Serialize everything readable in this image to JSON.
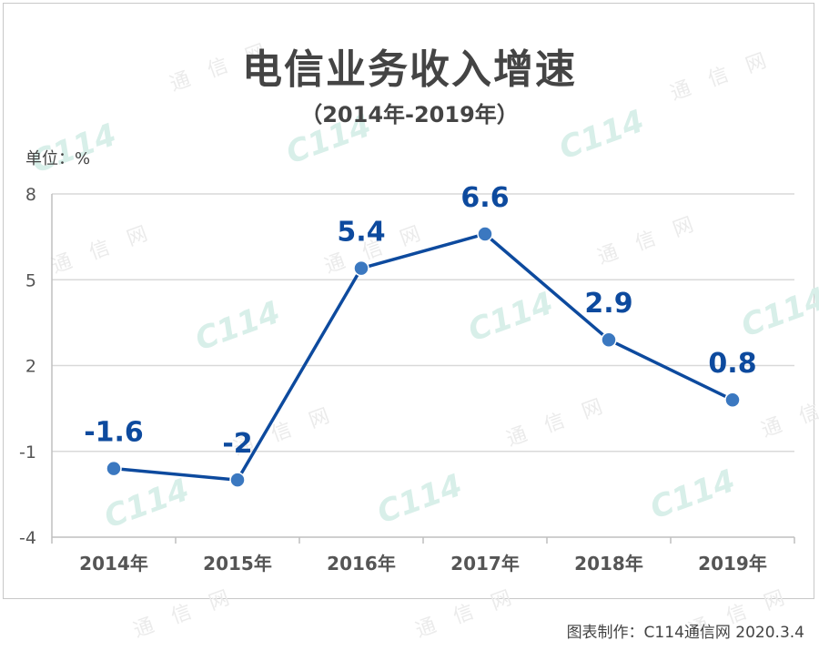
{
  "header": {
    "title": "电信业务收入增速",
    "subtitle": "（2014年-2019年）",
    "unit_label": "单位：%"
  },
  "footer": {
    "credit": "图表制作：C114通信网  2020.3.4"
  },
  "watermark": {
    "brand": "C114",
    "chars": [
      "通",
      "信",
      "网"
    ]
  },
  "colors": {
    "line": "#0d4a9e",
    "marker": "#3b78c0",
    "data_label": "#0d4a9e",
    "grid": "#d9d9d9",
    "axis_text": "#555555"
  },
  "chart_data": {
    "type": "line",
    "title": "电信业务收入增速",
    "subtitle": "（2014年-2019年）",
    "ylabel": "单位：%",
    "categories": [
      "2014年",
      "2015年",
      "2016年",
      "2017年",
      "2018年",
      "2019年"
    ],
    "series": [
      {
        "values": [
          -1.6,
          -2,
          5.4,
          6.6,
          2.9,
          0.8
        ]
      }
    ],
    "data_labels": [
      "-1.6",
      "-2",
      "5.4",
      "6.6",
      "2.9",
      "0.8"
    ],
    "ylim": [
      -4,
      8
    ],
    "yticks": [
      8,
      5,
      2,
      -1,
      -4
    ],
    "ytick_labels": [
      "8",
      "5",
      "2",
      "-1",
      "-4"
    ],
    "grid": true,
    "legend": "none"
  }
}
